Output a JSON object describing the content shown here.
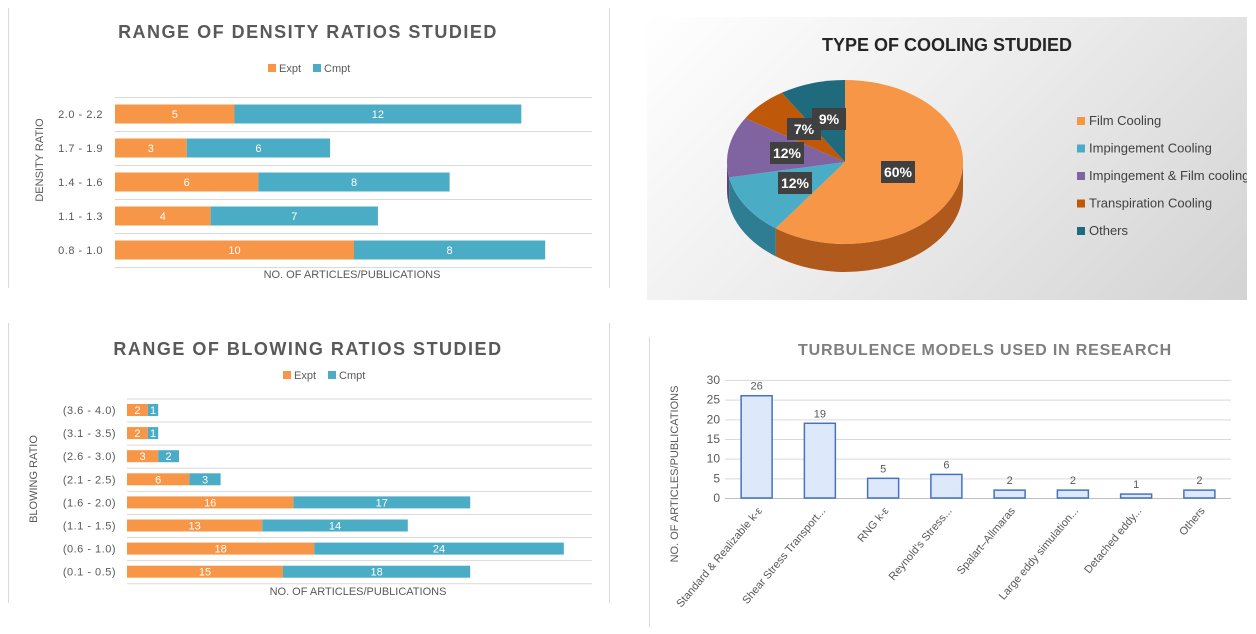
{
  "colors": {
    "expt": "#f79646",
    "cmpt": "#4bacc6"
  },
  "chart_data": [
    {
      "type": "bar",
      "orientation": "horizontal",
      "stacked": true,
      "title": "RANGE OF DENSITY RATIOS STUDIED",
      "xlabel": "NO. OF ARTICLES/PUBLICATIONS",
      "ylabel": "DENSITY RATIO",
      "categories": [
        "2.0 - 2.2",
        "1.7 - 1.9",
        "1.4 - 1.6",
        "1.1 - 1.3",
        "0.8 - 1.0"
      ],
      "series": [
        {
          "name": "Expt",
          "values": [
            5,
            3,
            6,
            4,
            10
          ]
        },
        {
          "name": "Cmpt",
          "values": [
            12,
            6,
            8,
            7,
            8
          ]
        }
      ],
      "legend": "top"
    },
    {
      "type": "pie",
      "title": "TYPE OF COOLING STUDIED",
      "labels": [
        "Film Cooling",
        "Impingement Cooling",
        "Impingement & Film cooling",
        "Transpiration Cooling",
        "Others"
      ],
      "values": [
        60,
        12,
        12,
        7,
        9
      ],
      "value_labels": [
        "60%",
        "12%",
        "12%",
        "7%",
        "9%"
      ],
      "colors": [
        "#f79646",
        "#4bacc6",
        "#8064a2",
        "#c0580a",
        "#1f6b7d"
      ],
      "legend": "right"
    },
    {
      "type": "bar",
      "orientation": "horizontal",
      "stacked": true,
      "title": "RANGE OF BLOWING RATIOS STUDIED",
      "xlabel": "NO. OF ARTICLES/PUBLICATIONS",
      "ylabel": "BLOWING RATIO",
      "categories": [
        "(3.6 - 4.0)",
        "(3.1 - 3.5)",
        "(2.6 - 3.0)",
        "(2.1 - 2.5)",
        "(1.6 - 2.0)",
        "(1.1 - 1.5)",
        "(0.6 - 1.0)",
        "(0.1 - 0.5)"
      ],
      "series": [
        {
          "name": "Expt",
          "values": [
            2,
            2,
            3,
            6,
            16,
            13,
            18,
            15
          ]
        },
        {
          "name": "Cmpt",
          "values": [
            1,
            1,
            2,
            3,
            17,
            14,
            24,
            18
          ]
        }
      ],
      "legend": "top"
    },
    {
      "type": "bar",
      "orientation": "vertical",
      "title": "TURBULENCE MODELS USED IN RESEARCH",
      "xlabel": "",
      "ylabel": "NO. OF ARTICLES/PUBLICATIONS",
      "categories": [
        "Standard & Realizable  k-ε",
        "Shear Stress Transport...",
        "RNG k-ε",
        "Reynold's Stress...",
        "Spalart–Allmaras",
        "Large eddy simulation...",
        "Detached eddy...",
        "Others"
      ],
      "values": [
        26,
        19,
        5,
        6,
        2,
        2,
        1,
        2
      ],
      "ylim": [
        0,
        30
      ],
      "yticks": [
        "0",
        "5",
        "10",
        "15",
        "20",
        "25",
        "30"
      ]
    }
  ]
}
